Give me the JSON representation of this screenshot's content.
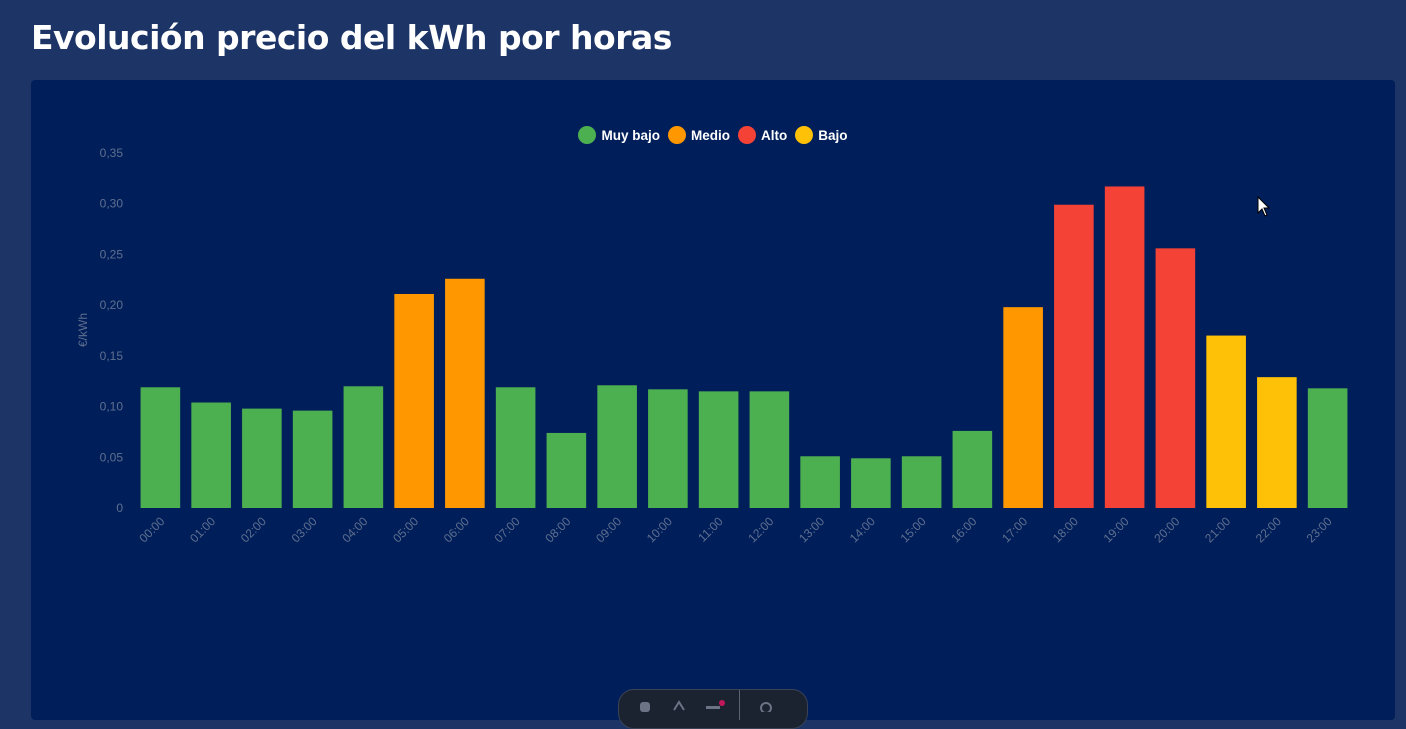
{
  "page": {
    "title": "Evolución precio del kWh por horas"
  },
  "colors": {
    "page_bg": "#1c3566",
    "card_bg": "#001f5a",
    "muy_bajo": "#4caf50",
    "medio": "#ff9800",
    "alto": "#f44336",
    "bajo": "#ffc107"
  },
  "legend": [
    {
      "label": "Muy bajo",
      "color": "#4caf50"
    },
    {
      "label": "Medio",
      "color": "#ff9800"
    },
    {
      "label": "Alto",
      "color": "#f44336"
    },
    {
      "label": "Bajo",
      "color": "#ffc107"
    }
  ],
  "chart_data": {
    "type": "bar",
    "title": "",
    "xlabel": "",
    "ylabel": "€/kWh",
    "ylim": [
      0,
      0.35
    ],
    "yticks": [
      0,
      0.05,
      0.1,
      0.15,
      0.2,
      0.25,
      0.3,
      0.35
    ],
    "ytick_labels": [
      "0",
      "0,05",
      "0,10",
      "0,15",
      "0,20",
      "0,25",
      "0,30",
      "0,35"
    ],
    "grid": false,
    "legend_position": "top-center",
    "categories": [
      "00:00",
      "01:00",
      "02:00",
      "03:00",
      "04:00",
      "05:00",
      "06:00",
      "07:00",
      "08:00",
      "09:00",
      "10:00",
      "11:00",
      "12:00",
      "13:00",
      "14:00",
      "15:00",
      "16:00",
      "17:00",
      "18:00",
      "19:00",
      "20:00",
      "21:00",
      "22:00",
      "23:00"
    ],
    "values": [
      0.119,
      0.104,
      0.098,
      0.096,
      0.12,
      0.211,
      0.226,
      0.119,
      0.074,
      0.121,
      0.117,
      0.115,
      0.115,
      0.051,
      0.049,
      0.051,
      0.076,
      0.198,
      0.299,
      0.317,
      0.256,
      0.17,
      0.129,
      0.118
    ],
    "levels": [
      "Muy bajo",
      "Muy bajo",
      "Muy bajo",
      "Muy bajo",
      "Muy bajo",
      "Medio",
      "Medio",
      "Muy bajo",
      "Muy bajo",
      "Muy bajo",
      "Muy bajo",
      "Muy bajo",
      "Muy bajo",
      "Muy bajo",
      "Muy bajo",
      "Muy bajo",
      "Muy bajo",
      "Medio",
      "Alto",
      "Alto",
      "Alto",
      "Bajo",
      "Bajo",
      "Muy bajo"
    ]
  },
  "toolbar": {
    "icons": [
      "toolbar-icon-1",
      "toolbar-icon-2",
      "toolbar-icon-3",
      "toolbar-icon-4"
    ]
  }
}
